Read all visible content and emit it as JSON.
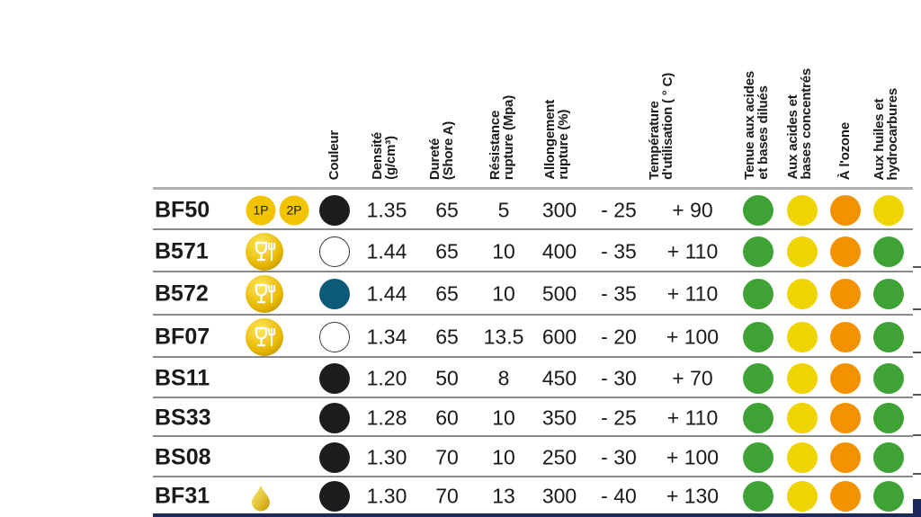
{
  "headers": {
    "couleur": "Couleur",
    "densite": "Densité\n(g/cm³)",
    "durete": "Dureté\n(Shore A)",
    "resistance": "Résistance\nrupture (Mpa)",
    "allongement": "Allongement\nrupture (%)",
    "temperature": "Température\nd'utilisation ( ° C)",
    "acides_dilues": "Tenue aux acides\net bases dilués",
    "acides_concentres": "Aux acides et\nbases concentrés",
    "ozone": "À l'ozone",
    "huiles": "Aux huiles et\nhydrocarbures"
  },
  "colors": {
    "green": "#3ea235",
    "yellow": "#f0d400",
    "orange": "#f39200",
    "black": "#1c1c1c",
    "white": "#ffffff",
    "teal": "#0a5a78"
  },
  "rows": [
    {
      "name": "BF50",
      "icons": [
        "1P",
        "2P"
      ],
      "color": "black",
      "densite": "1.35",
      "durete": "65",
      "resistance": "5",
      "allongement": "300",
      "tmin": "- 25",
      "tmax": "+ 90",
      "ratings": [
        "green",
        "yellow",
        "orange",
        "yellow"
      ]
    },
    {
      "name": "B571",
      "icons": [
        "food-contact"
      ],
      "color": "white",
      "densite": "1.44",
      "durete": "65",
      "resistance": "10",
      "allongement": "400",
      "tmin": "- 35",
      "tmax": "+ 110",
      "ratings": [
        "green",
        "yellow",
        "orange",
        "green"
      ]
    },
    {
      "name": "B572",
      "icons": [
        "food-contact"
      ],
      "color": "teal",
      "densite": "1.44",
      "durete": "65",
      "resistance": "10",
      "allongement": "500",
      "tmin": "- 35",
      "tmax": "+ 110",
      "ratings": [
        "green",
        "yellow",
        "orange",
        "green"
      ]
    },
    {
      "name": "BF07",
      "icons": [
        "food-contact"
      ],
      "color": "white",
      "densite": "1.34",
      "durete": "65",
      "resistance": "13.5",
      "allongement": "600",
      "tmin": "- 20",
      "tmax": "+ 100",
      "ratings": [
        "green",
        "yellow",
        "orange",
        "green"
      ]
    },
    {
      "name": "BS11",
      "icons": [],
      "color": "black",
      "densite": "1.20",
      "durete": "50",
      "resistance": "8",
      "allongement": "450",
      "tmin": "- 30",
      "tmax": "+ 70",
      "ratings": [
        "green",
        "yellow",
        "orange",
        "green"
      ]
    },
    {
      "name": "BS33",
      "icons": [],
      "color": "black",
      "densite": "1.28",
      "durete": "60",
      "resistance": "10",
      "allongement": "350",
      "tmin": "- 25",
      "tmax": "+ 110",
      "ratings": [
        "green",
        "yellow",
        "orange",
        "green"
      ]
    },
    {
      "name": "BS08",
      "icons": [],
      "color": "black",
      "densite": "1.30",
      "durete": "70",
      "resistance": "10",
      "allongement": "250",
      "tmin": "- 30",
      "tmax": "+ 100",
      "ratings": [
        "green",
        "yellow",
        "orange",
        "green"
      ]
    },
    {
      "name": "BF31",
      "icons": [
        "oil-drop"
      ],
      "color": "black",
      "densite": "1.30",
      "durete": "70",
      "resistance": "13",
      "allongement": "300",
      "tmin": "- 40",
      "tmax": "+ 130",
      "ratings": [
        "green",
        "yellow",
        "orange",
        "green"
      ]
    }
  ]
}
